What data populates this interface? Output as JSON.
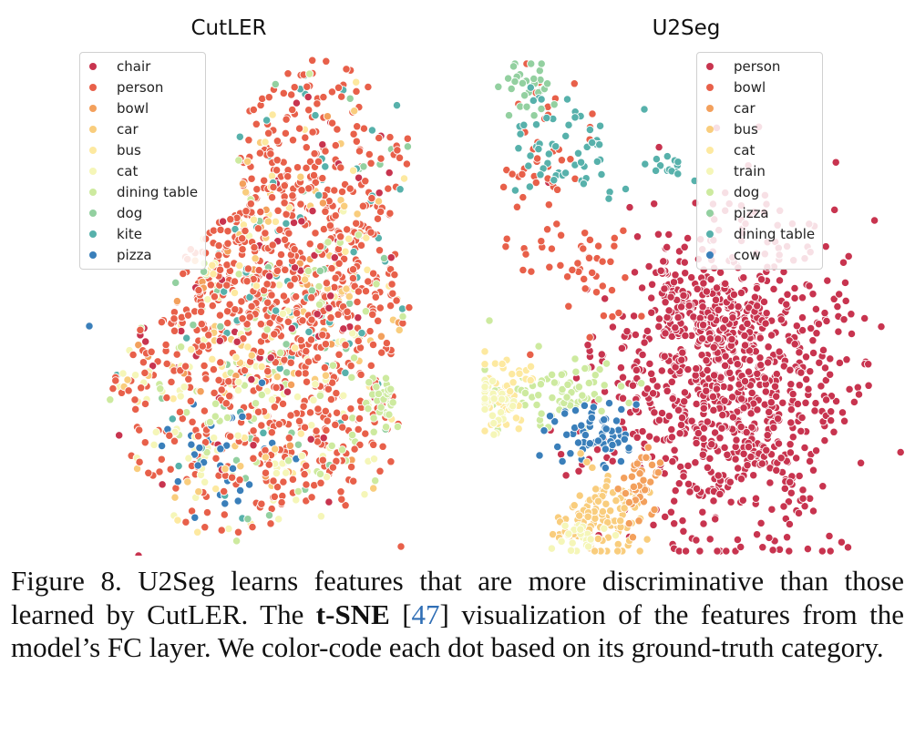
{
  "chart_data": [
    {
      "type": "scatter",
      "title": "CutLER",
      "legend": {
        "placement": "top-left",
        "entries": [
          "chair",
          "person",
          "bowl",
          "car",
          "bus",
          "cat",
          "dining table",
          "dog",
          "kite",
          "pizza"
        ]
      },
      "colors": {
        "chair": "#c8344f",
        "person": "#e8604a",
        "bowl": "#f3a05c",
        "car": "#f9cd7d",
        "bus": "#fde9a0",
        "cat": "#f5f6b8",
        "dining table": "#cdea9f",
        "dog": "#93d0a0",
        "kite": "#57b1ab",
        "pizza": "#3a7fba"
      },
      "axes_visible": false,
      "grid": false,
      "note_values": "t-SNE embedding; dots are many points per category, mostly mixed together"
    },
    {
      "type": "scatter",
      "title": "U2Seg",
      "legend": {
        "placement": "top-right",
        "entries": [
          "person",
          "bowl",
          "car",
          "bus",
          "cat",
          "train",
          "dog",
          "pizza",
          "dining table",
          "cow"
        ]
      },
      "colors": {
        "person": "#c8344f",
        "bowl": "#e8604a",
        "car": "#f3a05c",
        "bus": "#f9cd7d",
        "cat": "#fde9a0",
        "train": "#f5f6b8",
        "dog": "#cdea9f",
        "pizza": "#93d0a0",
        "dining table": "#57b1ab",
        "cow": "#3a7fba"
      },
      "axes_visible": false,
      "grid": false,
      "note_values": "t-SNE embedding; categories form separated clusters"
    }
  ],
  "caption": {
    "prefix": "Figure 8. U2Seg learns features that are more discriminative than those learned by CutLER. The ",
    "bold": "t-SNE",
    "cite_open": " [",
    "cite": "47",
    "cite_close": "]",
    "suffix": " visualization of the features from the model’s FC layer. We color-code each dot based on its ground-truth category."
  }
}
